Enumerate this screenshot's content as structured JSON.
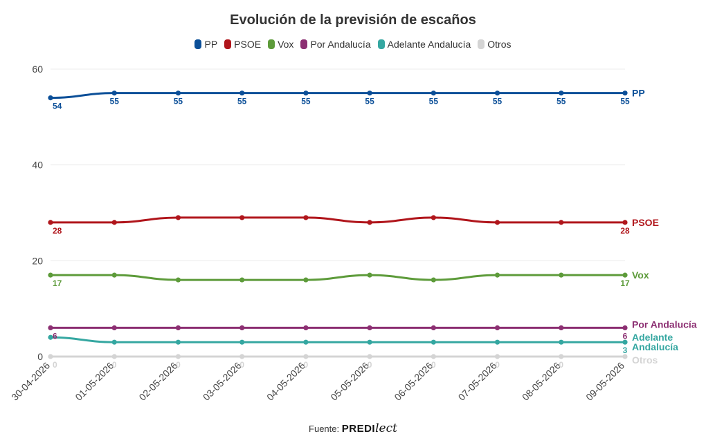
{
  "chart_data": {
    "type": "line",
    "title": "Evolución de la previsión de escaños",
    "categories": [
      "30-04-2026",
      "01-05-2026",
      "02-05-2026",
      "03-05-2026",
      "04-05-2026",
      "05-05-2026",
      "06-05-2026",
      "07-05-2026",
      "08-05-2026",
      "09-05-2026"
    ],
    "ylim": [
      0,
      60
    ],
    "yticks": [
      0,
      20,
      40,
      60
    ],
    "grid": true,
    "legend_position": "top-center",
    "series": [
      {
        "name": "PP",
        "color": "#0b4f98",
        "values": [
          54,
          55,
          55,
          55,
          55,
          55,
          55,
          55,
          55,
          55
        ],
        "end_label": "PP",
        "label_indices": [
          0,
          1,
          2,
          3,
          4,
          5,
          6,
          7,
          8,
          9
        ]
      },
      {
        "name": "PSOE",
        "color": "#b0151b",
        "values": [
          28,
          28,
          29,
          29,
          29,
          28,
          29,
          28,
          28,
          28
        ],
        "end_label": "PSOE",
        "label_indices": [
          0,
          9
        ]
      },
      {
        "name": "Vox",
        "color": "#5d9b3a",
        "values": [
          17,
          17,
          16,
          16,
          16,
          17,
          16,
          17,
          17,
          17
        ],
        "end_label": "Vox",
        "label_indices": [
          0,
          9
        ]
      },
      {
        "name": "Por Andalucía",
        "color": "#8c2f72",
        "values": [
          6,
          6,
          6,
          6,
          6,
          6,
          6,
          6,
          6,
          6
        ],
        "end_label": "Por Andalucía",
        "label_indices": [
          0,
          9
        ]
      },
      {
        "name": "Adelante Andalucía",
        "color": "#35a7a1",
        "values": [
          4,
          3,
          3,
          3,
          3,
          3,
          3,
          3,
          3,
          3
        ],
        "end_label": "Adelante\nAndalucía",
        "label_indices": [
          9
        ]
      },
      {
        "name": "Otros",
        "color": "#d4d4d4",
        "values": [
          0,
          0,
          0,
          0,
          0,
          0,
          0,
          0,
          0,
          0
        ],
        "end_label": "Otros",
        "label_indices": [
          0,
          1,
          2,
          3,
          4,
          5,
          6,
          7,
          8
        ]
      }
    ]
  },
  "footer": {
    "prefix": "Fuente:",
    "brand_bold": "PREDI",
    "brand_script": "lect"
  }
}
